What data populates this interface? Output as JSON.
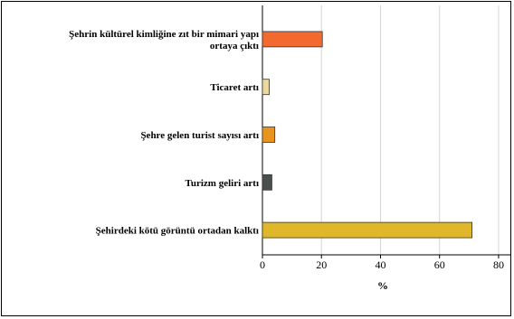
{
  "chart_data": {
    "type": "bar",
    "orientation": "horizontal",
    "title": "",
    "xlabel": "%",
    "ylabel": "",
    "xlim": [
      0,
      84
    ],
    "xticks": [
      0,
      20,
      40,
      60,
      80
    ],
    "grid": "vertical",
    "legend": "none",
    "categories": [
      [
        "Şehrin kültürel kimliğine zıt bir mimari yapı",
        "ortaya çıktı"
      ],
      [
        "Ticaret artı"
      ],
      [
        "Şehre gelen turist sayısı artı"
      ],
      [
        "Turizm geliri artı"
      ],
      [
        "Şehirdeki kötü görüntü ortadan kalktı"
      ]
    ],
    "values": [
      20.3,
      2.3,
      4.2,
      3.2,
      71.0
    ],
    "colors": [
      "#f26a30",
      "#e9d9a0",
      "#e8951f",
      "#4a4f4d",
      "#e0b72a"
    ]
  }
}
